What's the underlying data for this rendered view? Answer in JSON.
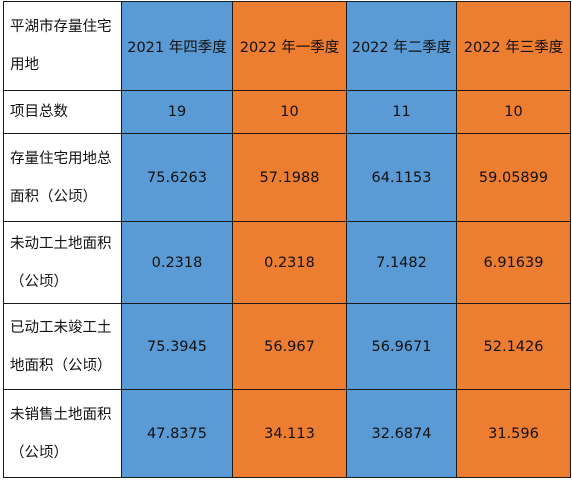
{
  "table": {
    "colors": {
      "blue": "#5b9bd5",
      "orange": "#ed7d31",
      "border": "#1a1a1a"
    },
    "corner_header": "平湖市存量住宅用地",
    "column_headers": [
      "2021 年四季度",
      "2022 年一季度",
      "2022 年二季度",
      "2022 年三季度"
    ],
    "column_colors": [
      "blue",
      "orange",
      "blue",
      "orange"
    ],
    "rows": [
      {
        "label": "项目总数",
        "values": [
          "19",
          "10",
          "11",
          "10"
        ]
      },
      {
        "label": "存量住宅用地总面积（公顷）",
        "values": [
          "75.6263",
          "57.1988",
          "64.1153",
          "59.05899"
        ]
      },
      {
        "label": "未动工土地面积（公顷）",
        "values": [
          "0.2318",
          "0.2318",
          "7.1482",
          "6.91639"
        ]
      },
      {
        "label": "已动工未竣工土地面积（公顷）",
        "values": [
          "75.3945",
          "56.967",
          "56.9671",
          "52.1426"
        ]
      },
      {
        "label": "未销售土地面积（公顷）",
        "values": [
          "47.8375",
          "34.113",
          "32.6874",
          "31.596"
        ]
      }
    ]
  }
}
